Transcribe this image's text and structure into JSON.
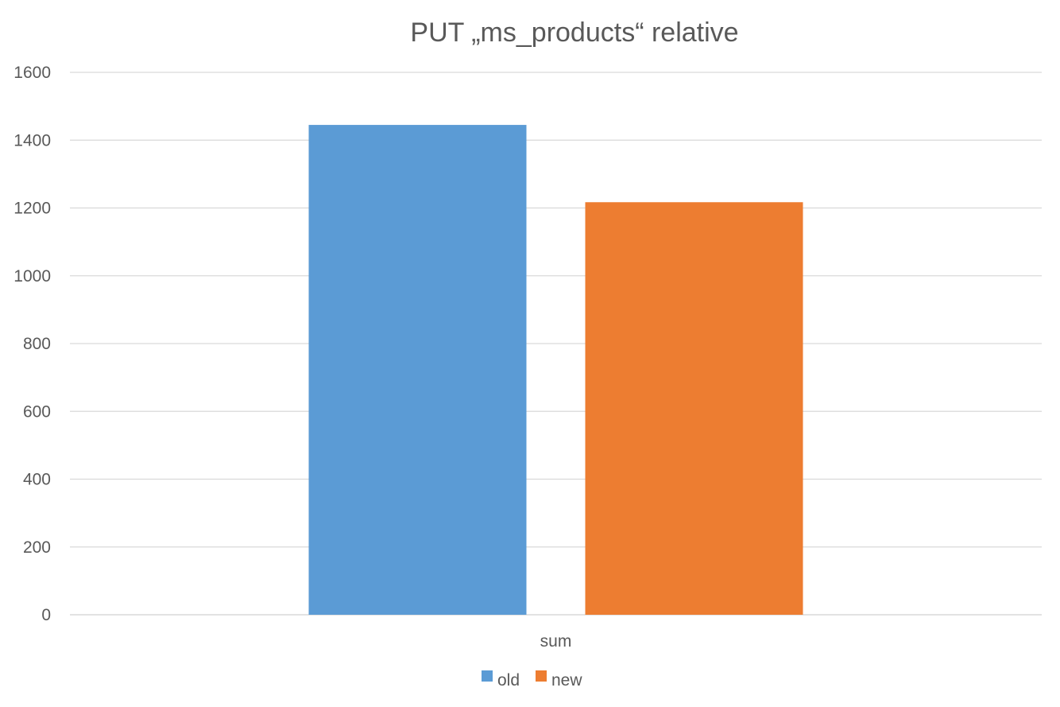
{
  "chart_data": {
    "type": "bar",
    "title": "PUT „ms_products“ relative",
    "categories": [
      "sum"
    ],
    "series": [
      {
        "name": "old",
        "values": [
          1445
        ],
        "color": "#5b9bd5"
      },
      {
        "name": "new",
        "values": [
          1217
        ],
        "color": "#ed7d31"
      }
    ],
    "xlabel": "",
    "ylabel": "",
    "ylim": [
      0,
      1600
    ],
    "yticks": [
      "0",
      "200",
      "400",
      "600",
      "800",
      "1000",
      "1200",
      "1400",
      "1600"
    ],
    "grid": true,
    "legend_position": "bottom"
  }
}
